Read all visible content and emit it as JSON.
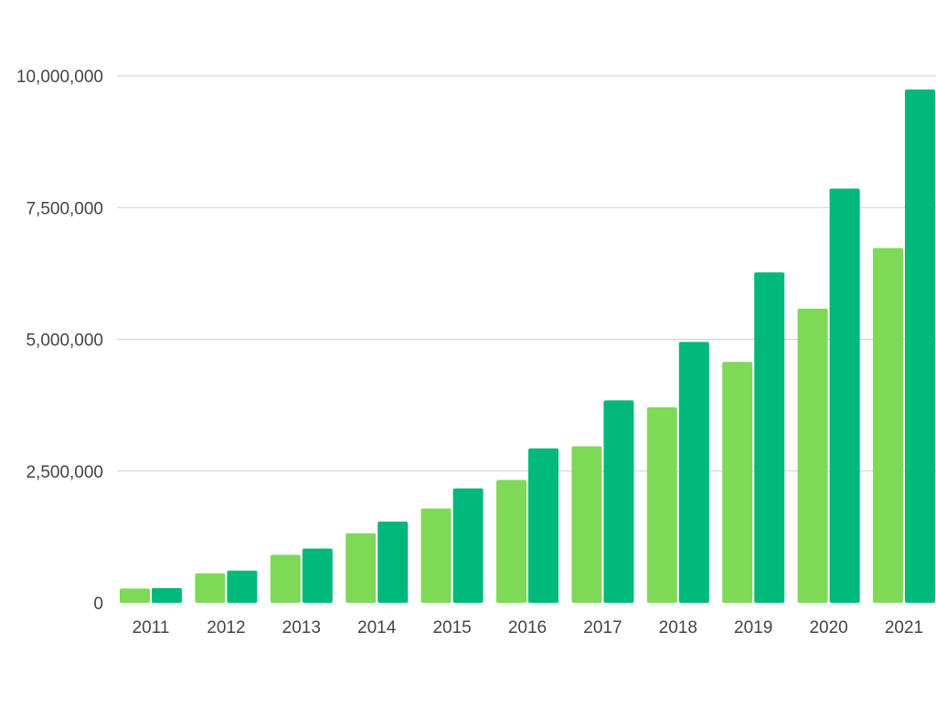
{
  "chart_data": {
    "type": "bar",
    "categories": [
      "2011",
      "2012",
      "2013",
      "2014",
      "2015",
      "2016",
      "2017",
      "2018",
      "2019",
      "2020",
      "2021"
    ],
    "series": [
      {
        "color": "#7ed957",
        "values": [
          270000,
          560000,
          910000,
          1320000,
          1790000,
          2330000,
          2970000,
          3710000,
          4570000,
          5580000,
          6730000
        ]
      },
      {
        "color": "#00b87a",
        "values": [
          280000,
          610000,
          1030000,
          1540000,
          2170000,
          2930000,
          3840000,
          4950000,
          6270000,
          7860000,
          9740000
        ]
      }
    ],
    "yticks": [
      0,
      2500000,
      5000000,
      7500000,
      10000000
    ],
    "ytick_labels": [
      "0",
      "2,500,000",
      "5,000,000",
      "7,500,000",
      "10,000,000"
    ],
    "ylim": [
      0,
      10000000
    ],
    "grid": true,
    "colors": {
      "grid": "#d0d0d0",
      "tick_text": "#444444"
    }
  }
}
